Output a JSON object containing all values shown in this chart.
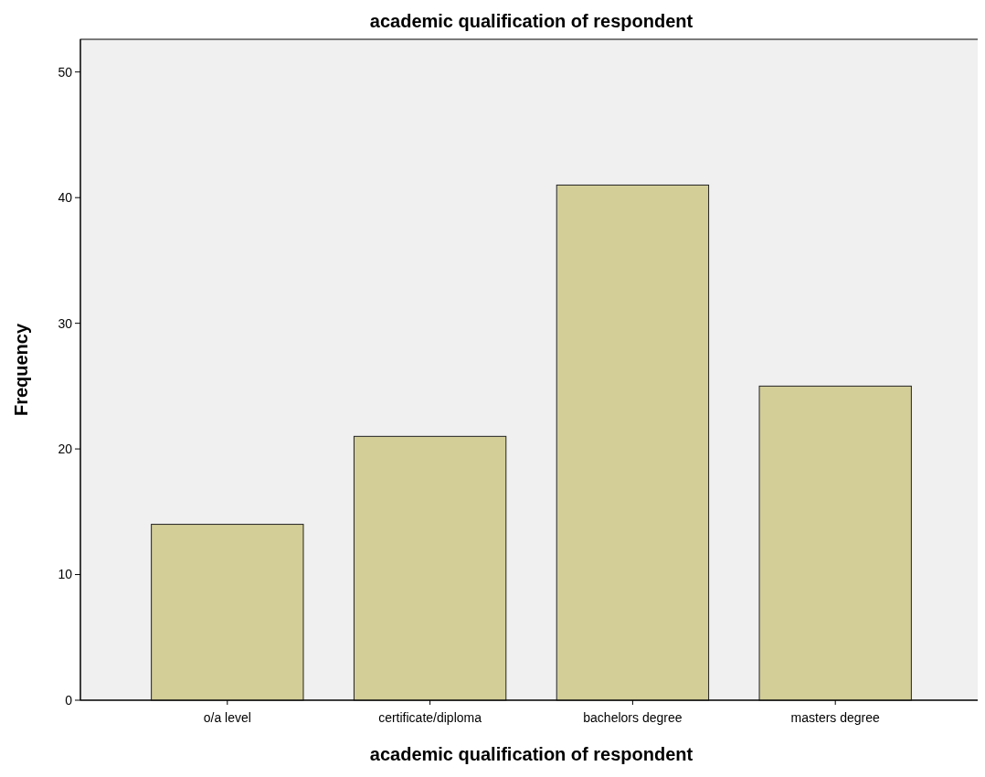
{
  "chart_data": {
    "type": "bar",
    "title": "academic qualification of respondent",
    "xlabel": "academic qualification of respondent",
    "ylabel": "Frequency",
    "categories": [
      "o/a level",
      "certificate/diploma",
      "bachelors degree",
      "masters degree"
    ],
    "values": [
      14,
      21,
      41,
      25
    ],
    "color": "#d3ce97",
    "ylim": [
      0,
      52.6
    ],
    "yticks": [
      0,
      10,
      20,
      30,
      40,
      50
    ],
    "grid": false
  }
}
